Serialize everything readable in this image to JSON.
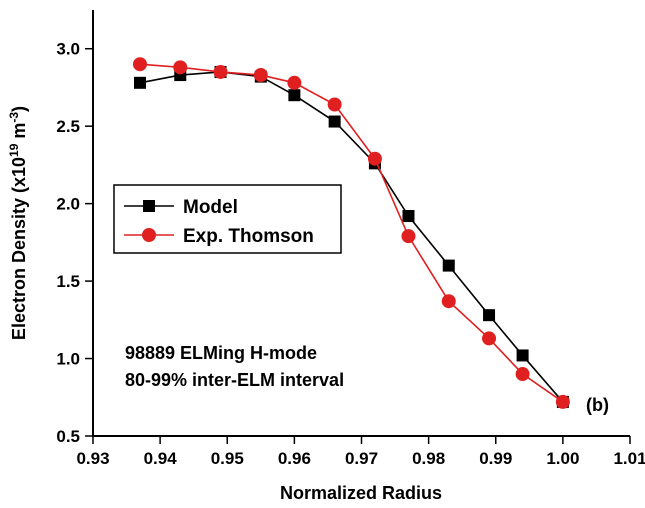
{
  "chart_data": {
    "type": "line",
    "xlabel": "Normalized Radius",
    "ylabel_main": "Electron Density (x10",
    "ylabel_sup1": "19",
    "ylabel_mid": " m",
    "ylabel_sup2": "-3",
    "ylabel_end": ")",
    "xlim": [
      0.93,
      1.01
    ],
    "ylim": [
      0.5,
      3.25
    ],
    "x_ticks": [
      "0.93",
      "0.94",
      "0.95",
      "0.96",
      "0.97",
      "0.98",
      "0.99",
      "1.00",
      "1.01"
    ],
    "y_ticks": [
      "0.5",
      "1.0",
      "1.5",
      "2.0",
      "2.5",
      "3.0"
    ],
    "legend_position": "left-middle",
    "series": [
      {
        "name": "Model",
        "color": "#000000",
        "marker": "square",
        "x": [
          0.937,
          0.943,
          0.949,
          0.955,
          0.96,
          0.966,
          0.972,
          0.977,
          0.983,
          0.989,
          0.994,
          1.0
        ],
        "y": [
          2.78,
          2.83,
          2.85,
          2.82,
          2.7,
          2.53,
          2.26,
          1.92,
          1.6,
          1.28,
          1.02,
          0.72
        ]
      },
      {
        "name": "Exp. Thomson",
        "color": "#e02020",
        "marker": "circle",
        "x": [
          0.937,
          0.943,
          0.949,
          0.955,
          0.96,
          0.966,
          0.972,
          0.977,
          0.983,
          0.989,
          0.994,
          1.0
        ],
        "y": [
          2.9,
          2.88,
          2.85,
          2.83,
          2.78,
          2.64,
          2.29,
          1.79,
          1.37,
          1.13,
          0.9,
          0.72
        ]
      }
    ],
    "annotations": {
      "line1": "98889 ELMing H-mode",
      "line2": "80-99% inter-ELM interval",
      "panel_label": "(b)"
    }
  }
}
